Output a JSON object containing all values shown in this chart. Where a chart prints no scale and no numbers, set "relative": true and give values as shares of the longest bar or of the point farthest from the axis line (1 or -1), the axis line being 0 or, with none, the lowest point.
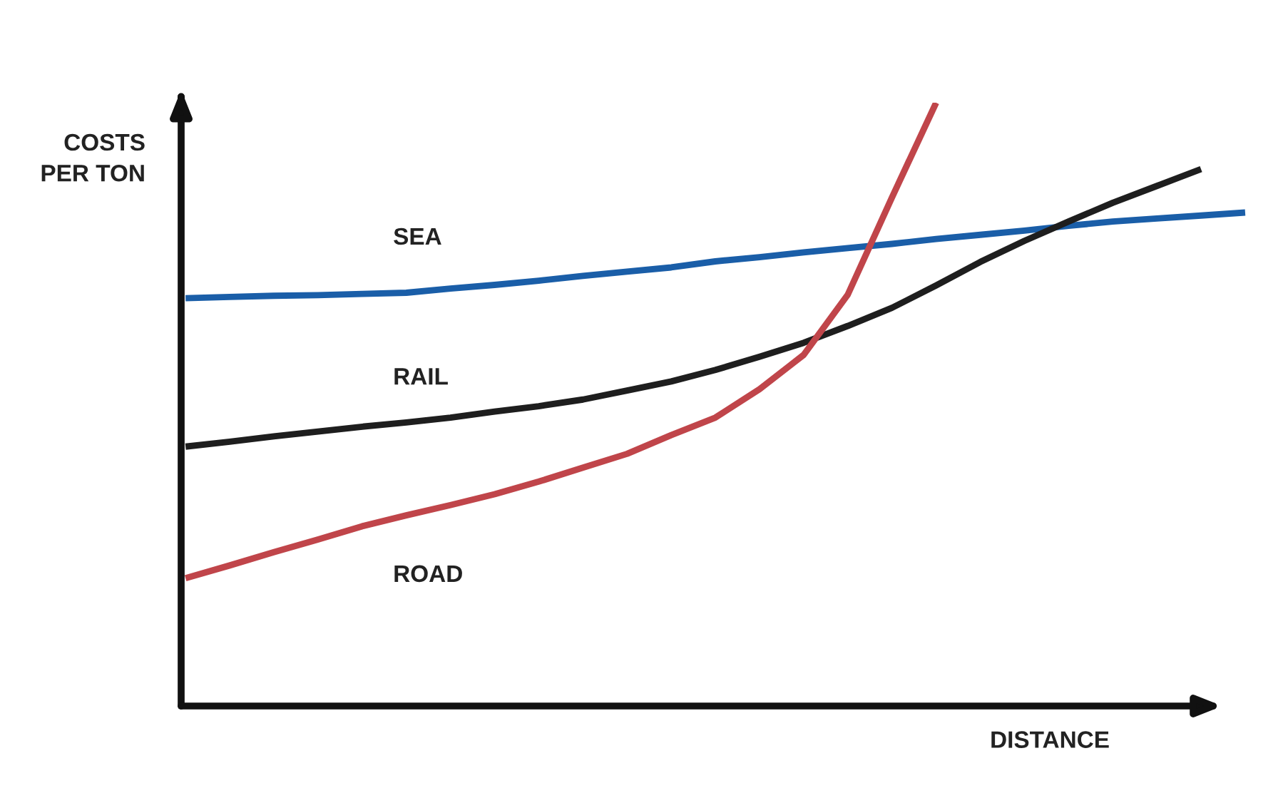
{
  "chart_data": {
    "type": "line",
    "relative": true,
    "xlabel": "DISTANCE",
    "ylabel": "COSTS\nPER TON",
    "legend": false,
    "marker": "none",
    "line_style": "solid",
    "categories": [
      null,
      null,
      null,
      null,
      null,
      null,
      null,
      null,
      null,
      null,
      null,
      null,
      null,
      null,
      null,
      null,
      null,
      null,
      null,
      null,
      null,
      null,
      null,
      null,
      null
    ],
    "series": [
      {
        "name": "SEA",
        "color": "#1a5ea8",
        "values": [
          0.676,
          0.678,
          0.68,
          0.681,
          0.683,
          0.685,
          0.692,
          0.698,
          0.705,
          0.713,
          0.72,
          0.727,
          0.737,
          0.744,
          0.752,
          0.759,
          0.766,
          0.774,
          0.781,
          0.788,
          0.796,
          0.803,
          0.808,
          0.813,
          0.818
        ]
      },
      {
        "name": "RAIL",
        "color": "#1e1e1e",
        "values": [
          0.43,
          0.438,
          0.447,
          0.455,
          0.463,
          0.47,
          0.478,
          0.488,
          0.497,
          0.508,
          0.523,
          0.538,
          0.557,
          0.579,
          0.602,
          0.63,
          0.66,
          0.697,
          0.736,
          0.771,
          0.803,
          0.834,
          0.862,
          0.89,
          null
        ]
      },
      {
        "name": "ROAD",
        "color": "#c0454a",
        "values": [
          0.212,
          0.233,
          0.255,
          0.276,
          0.298,
          0.316,
          0.333,
          0.351,
          0.372,
          0.395,
          0.418,
          0.449,
          0.478,
          0.525,
          0.582,
          0.682,
          0.843,
          1.0,
          null,
          null,
          null,
          null,
          null,
          null,
          null
        ]
      }
    ]
  }
}
